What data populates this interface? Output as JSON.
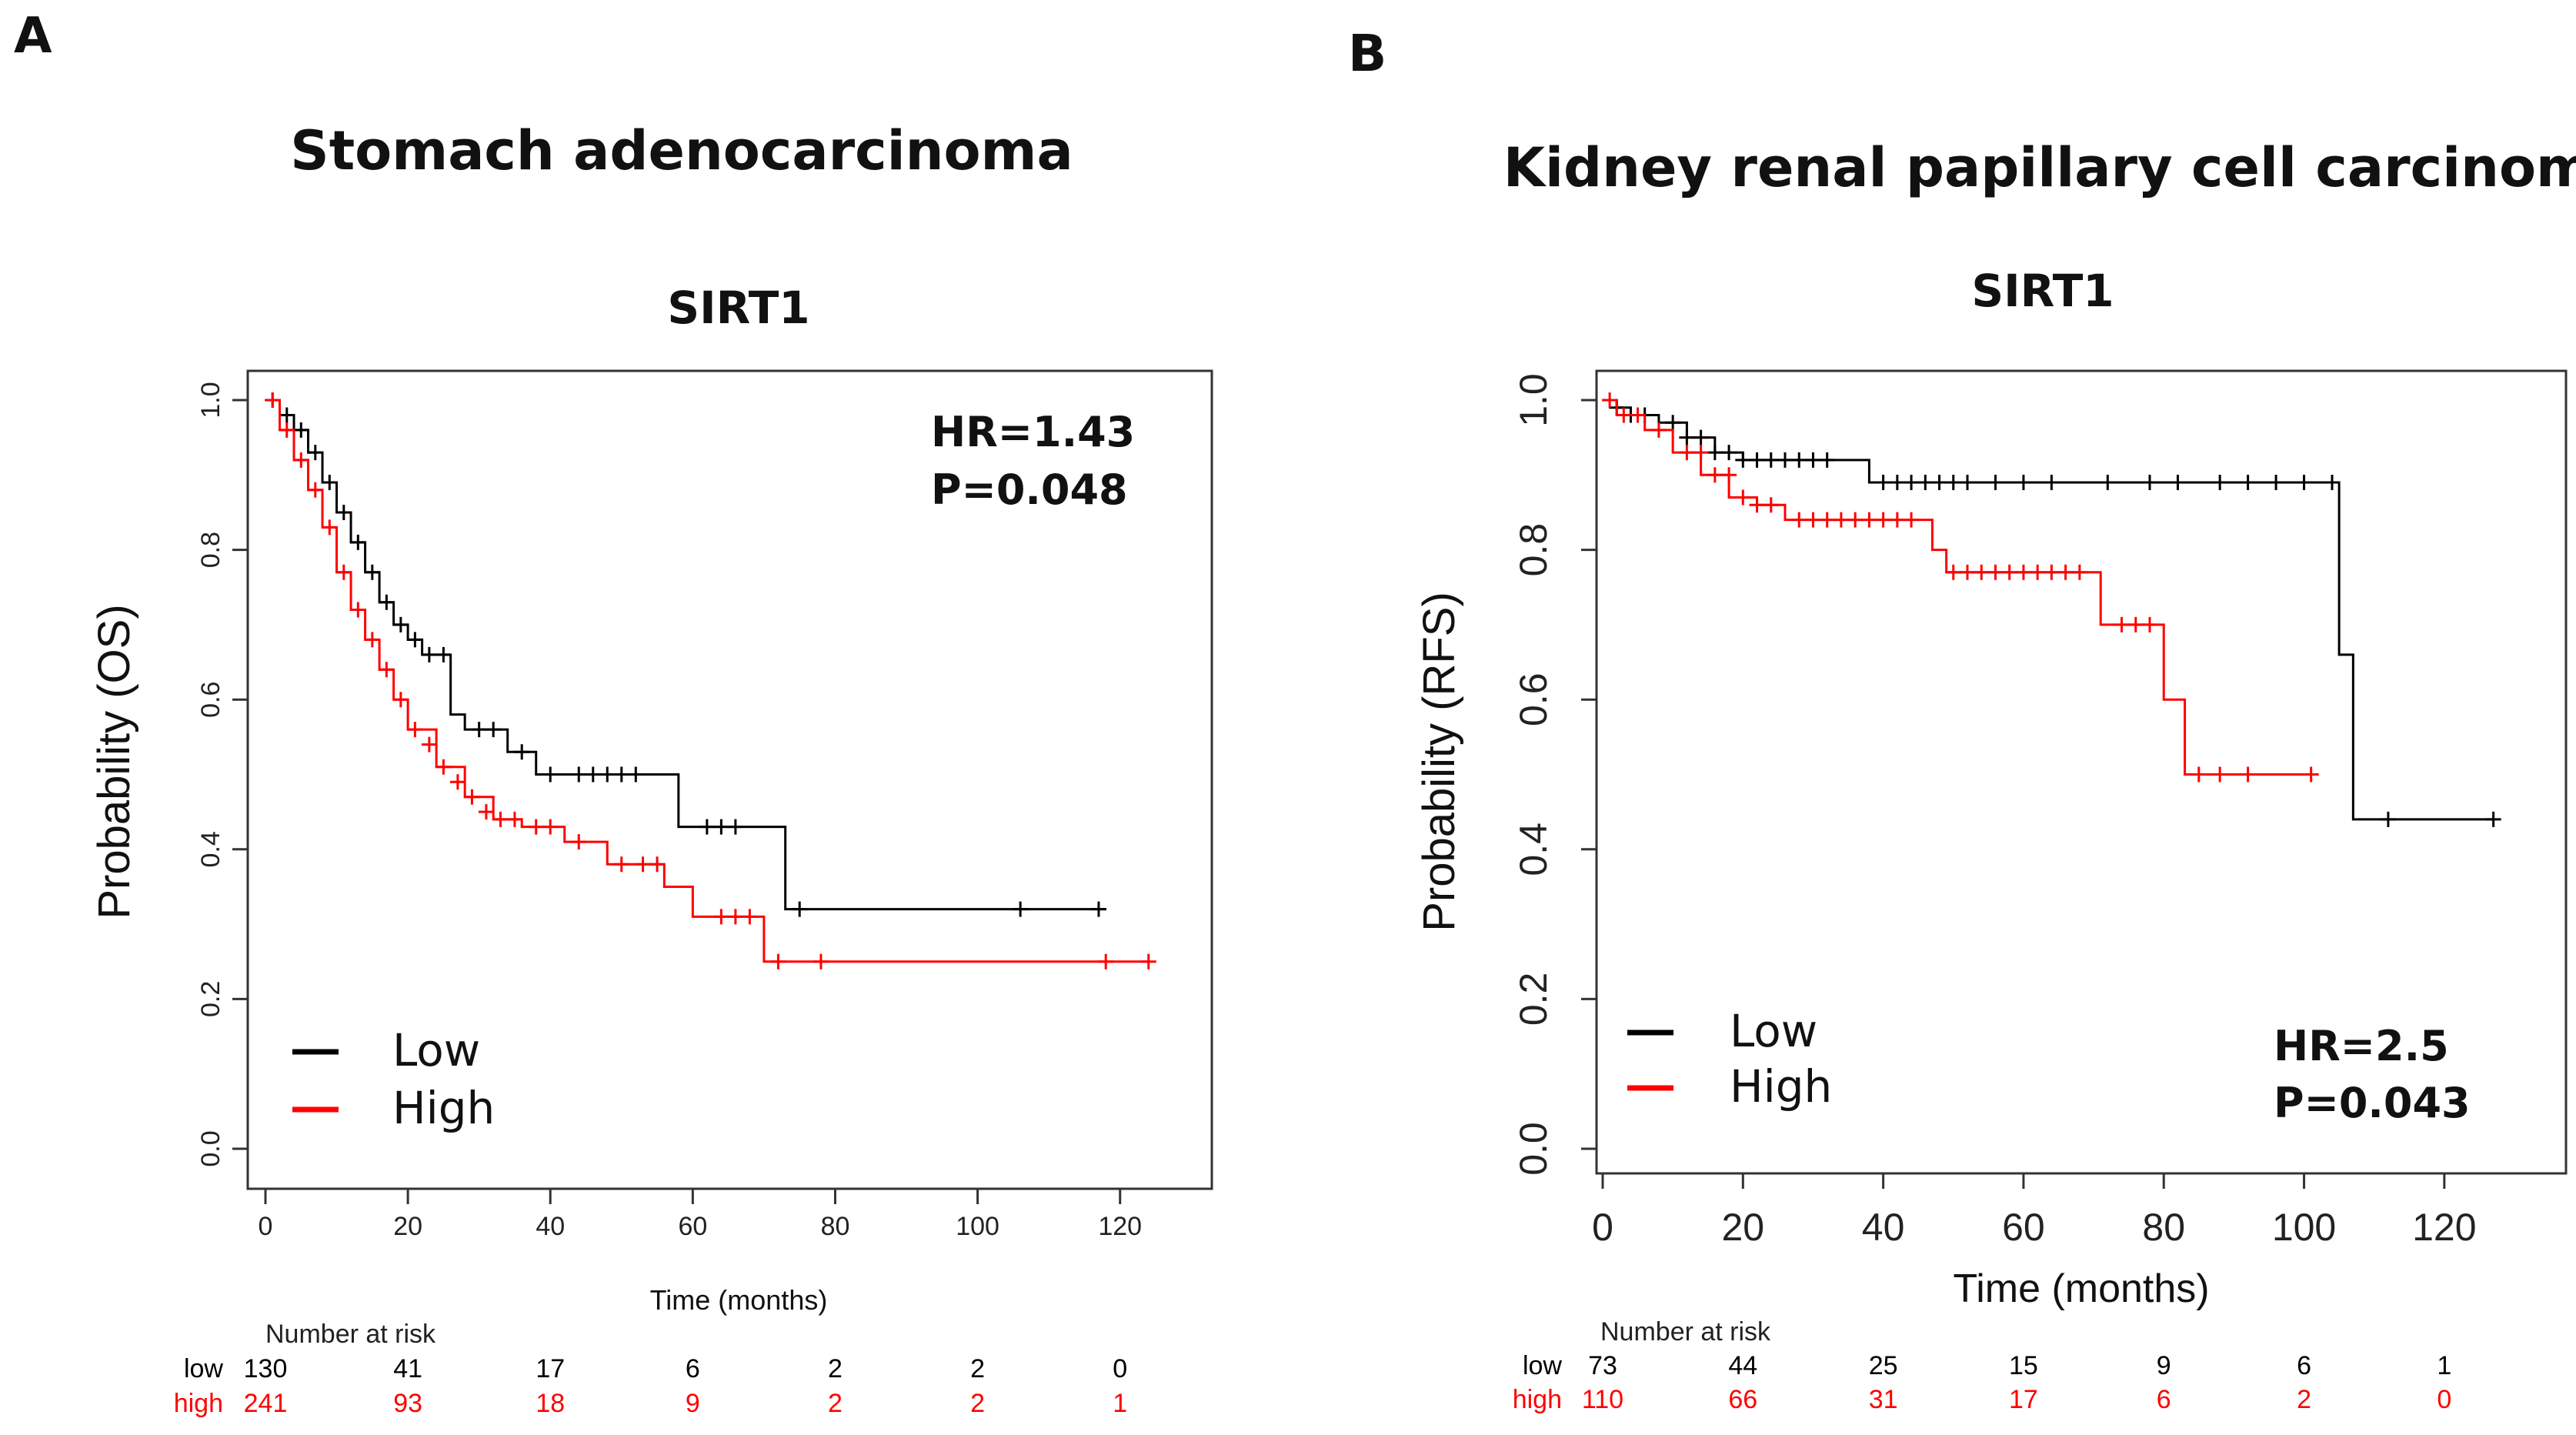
{
  "colors": {
    "low": "#000000",
    "high": "#ff0000",
    "axis": "#333333"
  },
  "chart_data": [
    {
      "type": "line",
      "panel_label": "A",
      "cancer_title": "Stomach adenocarcinoma",
      "title": "SIRT1",
      "xlabel": "Time (months)",
      "ylabel": "Probability (OS)",
      "xlim": [
        0,
        125
      ],
      "ylim": [
        0,
        1
      ],
      "xticks": [
        "0",
        "20",
        "40",
        "60",
        "80",
        "100",
        "120"
      ],
      "yticks": [
        "0.0",
        "0.2",
        "0.4",
        "0.6",
        "0.8",
        "1.0"
      ],
      "hr_text": "HR=1.43",
      "p_text": "P=0.048",
      "stats_position": "top-right",
      "legend_position": "bottom-left",
      "legend": [
        "Low",
        "High"
      ],
      "series": [
        {
          "name": "Low",
          "color_key": "low",
          "x": [
            0,
            2,
            4,
            6,
            8,
            10,
            12,
            14,
            16,
            18,
            20,
            22,
            24,
            26,
            28,
            34,
            38,
            42,
            58,
            73,
            118
          ],
          "y": [
            1.0,
            0.98,
            0.96,
            0.93,
            0.89,
            0.85,
            0.81,
            0.77,
            0.73,
            0.7,
            0.68,
            0.66,
            0.66,
            0.58,
            0.56,
            0.53,
            0.5,
            0.5,
            0.43,
            0.32,
            0.32
          ],
          "censor_x": [
            1,
            3,
            5,
            7,
            9,
            11,
            13,
            15,
            17,
            19,
            21,
            23,
            25,
            30,
            32,
            36,
            40,
            44,
            46,
            48,
            50,
            52,
            62,
            64,
            66,
            75,
            106,
            117
          ],
          "censor_y": [
            1.0,
            0.98,
            0.96,
            0.93,
            0.89,
            0.85,
            0.81,
            0.77,
            0.73,
            0.7,
            0.68,
            0.66,
            0.66,
            0.56,
            0.56,
            0.53,
            0.5,
            0.5,
            0.5,
            0.5,
            0.5,
            0.5,
            0.43,
            0.43,
            0.43,
            0.32,
            0.32,
            0.32
          ]
        },
        {
          "name": "High",
          "color_key": "high",
          "x": [
            0,
            2,
            4,
            6,
            8,
            10,
            12,
            14,
            16,
            18,
            20,
            24,
            28,
            32,
            36,
            42,
            48,
            56,
            60,
            70,
            124
          ],
          "y": [
            1.0,
            0.96,
            0.92,
            0.88,
            0.83,
            0.77,
            0.72,
            0.68,
            0.64,
            0.6,
            0.56,
            0.51,
            0.47,
            0.44,
            0.43,
            0.41,
            0.38,
            0.35,
            0.31,
            0.25,
            0.25
          ],
          "censor_x": [
            1,
            3,
            5,
            7,
            9,
            11,
            13,
            15,
            17,
            19,
            21,
            23,
            25,
            27,
            29,
            31,
            33,
            35,
            38,
            40,
            44,
            50,
            53,
            55,
            64,
            66,
            68,
            72,
            78,
            118,
            124
          ],
          "censor_y": [
            1.0,
            0.96,
            0.92,
            0.88,
            0.83,
            0.77,
            0.72,
            0.68,
            0.64,
            0.6,
            0.56,
            0.54,
            0.51,
            0.49,
            0.47,
            0.45,
            0.44,
            0.44,
            0.43,
            0.43,
            0.41,
            0.38,
            0.38,
            0.38,
            0.31,
            0.31,
            0.31,
            0.25,
            0.25,
            0.25,
            0.25
          ]
        }
      ],
      "risk_table": {
        "header": "Number at risk",
        "times": [
          0,
          20,
          40,
          60,
          80,
          100,
          120
        ],
        "low_label": "low",
        "high_label": "high",
        "low": [
          "130",
          "41",
          "17",
          "6",
          "2",
          "2",
          "0"
        ],
        "high": [
          "241",
          "93",
          "18",
          "9",
          "2",
          "2",
          "1"
        ]
      }
    },
    {
      "type": "line",
      "panel_label": "B",
      "cancer_title": "Kidney renal papillary cell carcinoma",
      "title": "SIRT1",
      "xlabel": "Time (months)",
      "ylabel": "Probability (RFS)",
      "xlim": [
        0,
        130
      ],
      "ylim": [
        0,
        1
      ],
      "xticks": [
        "0",
        "20",
        "40",
        "60",
        "80",
        "100",
        "120"
      ],
      "yticks": [
        "0.0",
        "0.2",
        "0.4",
        "0.6",
        "0.8",
        "1.0"
      ],
      "hr_text": "HR=2.5",
      "p_text": "P=0.043",
      "stats_position": "bottom-right",
      "legend_position": "bottom-left",
      "legend": [
        "Low",
        "High"
      ],
      "series": [
        {
          "name": "Low",
          "color_key": "low",
          "x": [
            0,
            2,
            4,
            8,
            12,
            16,
            20,
            38,
            105,
            107,
            127
          ],
          "y": [
            1.0,
            0.99,
            0.98,
            0.97,
            0.95,
            0.93,
            0.92,
            0.89,
            0.66,
            0.44,
            0.44
          ],
          "censor_x": [
            2,
            4,
            6,
            10,
            12,
            14,
            16,
            18,
            20,
            22,
            24,
            26,
            28,
            30,
            32,
            40,
            42,
            44,
            46,
            48,
            50,
            52,
            56,
            60,
            64,
            72,
            78,
            82,
            88,
            92,
            96,
            100,
            104,
            112,
            127
          ],
          "censor_y": [
            0.99,
            0.98,
            0.98,
            0.97,
            0.95,
            0.95,
            0.93,
            0.93,
            0.92,
            0.92,
            0.92,
            0.92,
            0.92,
            0.92,
            0.92,
            0.89,
            0.89,
            0.89,
            0.89,
            0.89,
            0.89,
            0.89,
            0.89,
            0.89,
            0.89,
            0.89,
            0.89,
            0.89,
            0.89,
            0.89,
            0.89,
            0.89,
            0.89,
            0.44,
            0.44
          ]
        },
        {
          "name": "High",
          "color_key": "high",
          "x": [
            0,
            2,
            6,
            10,
            14,
            18,
            22,
            26,
            47,
            49,
            71,
            80,
            83,
            101
          ],
          "y": [
            1.0,
            0.98,
            0.96,
            0.93,
            0.9,
            0.87,
            0.86,
            0.84,
            0.8,
            0.77,
            0.7,
            0.6,
            0.5,
            0.5
          ],
          "censor_x": [
            1,
            3,
            5,
            8,
            12,
            14,
            16,
            18,
            20,
            22,
            24,
            28,
            30,
            32,
            34,
            36,
            38,
            40,
            42,
            44,
            50,
            52,
            54,
            56,
            58,
            60,
            62,
            64,
            66,
            68,
            74,
            76,
            78,
            85,
            88,
            92,
            101
          ],
          "censor_y": [
            1.0,
            0.98,
            0.98,
            0.96,
            0.93,
            0.93,
            0.9,
            0.9,
            0.87,
            0.86,
            0.86,
            0.84,
            0.84,
            0.84,
            0.84,
            0.84,
            0.84,
            0.84,
            0.84,
            0.84,
            0.77,
            0.77,
            0.77,
            0.77,
            0.77,
            0.77,
            0.77,
            0.77,
            0.77,
            0.77,
            0.7,
            0.7,
            0.7,
            0.5,
            0.5,
            0.5,
            0.5
          ]
        }
      ],
      "risk_table": {
        "header": "Number at risk",
        "times": [
          0,
          20,
          40,
          60,
          80,
          100,
          120
        ],
        "low_label": "low",
        "high_label": "high",
        "low": [
          "73",
          "44",
          "25",
          "15",
          "9",
          "6",
          "1"
        ],
        "high": [
          "110",
          "66",
          "31",
          "17",
          "6",
          "2",
          "0"
        ]
      }
    }
  ]
}
